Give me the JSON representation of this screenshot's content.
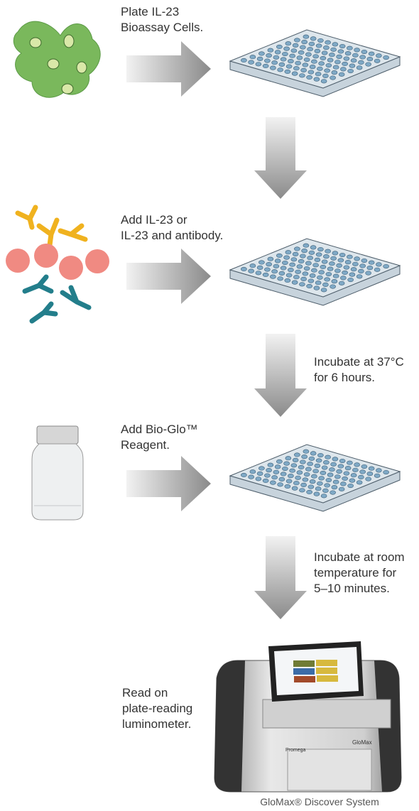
{
  "steps": [
    {
      "label": [
        "Plate IL-23",
        "Bioassay Cells."
      ]
    },
    {
      "label": [
        "Add IL-23 or",
        "IL-23 and antibody."
      ]
    },
    {
      "label": [
        "Add Bio-Glo™",
        "Reagent."
      ]
    }
  ],
  "incubations": [
    {
      "label": [
        "Incubate at 37°C",
        "for 6 hours."
      ]
    },
    {
      "label": [
        "Incubate at room",
        "temperature for",
        "5–10 minutes."
      ]
    }
  ],
  "read": {
    "label": [
      "Read on",
      "plate-reading",
      "luminometer."
    ]
  },
  "instrument": {
    "brand": "Promega",
    "model": "GloMax"
  },
  "caption": "GloMax® Discover System"
}
